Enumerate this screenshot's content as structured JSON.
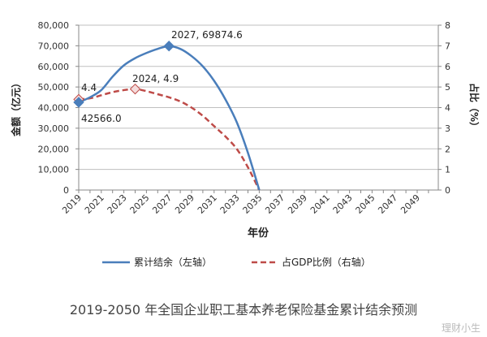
{
  "chart_data": {
    "type": "line",
    "x": [
      2019,
      2020,
      2021,
      2022,
      2023,
      2024,
      2025,
      2026,
      2027,
      2028,
      2029,
      2030,
      2031,
      2032,
      2033,
      2034,
      2035
    ],
    "x_ticks": [
      "2019",
      "2021",
      "2023",
      "2025",
      "2027",
      "2029",
      "2031",
      "2033",
      "2035",
      "2037",
      "2039",
      "2041",
      "2043",
      "2045",
      "2047",
      "2049"
    ],
    "xlim": [
      2019,
      2050
    ],
    "xlabel": "年份",
    "ylabel": "金额（亿元）",
    "ylabel_right": "占比（%）",
    "ylim": [
      0,
      80000
    ],
    "ylim_right": [
      0,
      8
    ],
    "y_ticks": [
      "0",
      "10,000",
      "20,000",
      "30,000",
      "40,000",
      "50,000",
      "60,000",
      "70,000",
      "80,000"
    ],
    "y_ticks_right": [
      "0",
      "1",
      "2",
      "3",
      "4",
      "5",
      "6",
      "7",
      "8"
    ],
    "grid": true,
    "legend": "bottom",
    "series": [
      {
        "name": "累计结余（左轴）",
        "axis": "left",
        "color": "#4a7ebb",
        "style": "solid",
        "values": [
          42566.0,
          45000,
          48500,
          55000,
          60500,
          64000,
          66500,
          68500,
          69874.6,
          68500,
          65000,
          60000,
          53000,
          44000,
          33000,
          18000,
          0
        ]
      },
      {
        "name": "占GDP比例（右轴）",
        "axis": "right",
        "color": "#be4b48",
        "style": "dashed",
        "values": [
          4.4,
          4.45,
          4.6,
          4.75,
          4.85,
          4.9,
          4.8,
          4.65,
          4.5,
          4.3,
          4.0,
          3.6,
          3.1,
          2.6,
          2.0,
          1.1,
          0
        ]
      }
    ],
    "annotations": [
      "2027, 69874.6",
      "2024, 4.9",
      "4.4",
      "42566.0"
    ]
  },
  "caption": "2019-2050 年全国企业职工基本养老保险基金累计结余预测",
  "watermark": "理财小生"
}
